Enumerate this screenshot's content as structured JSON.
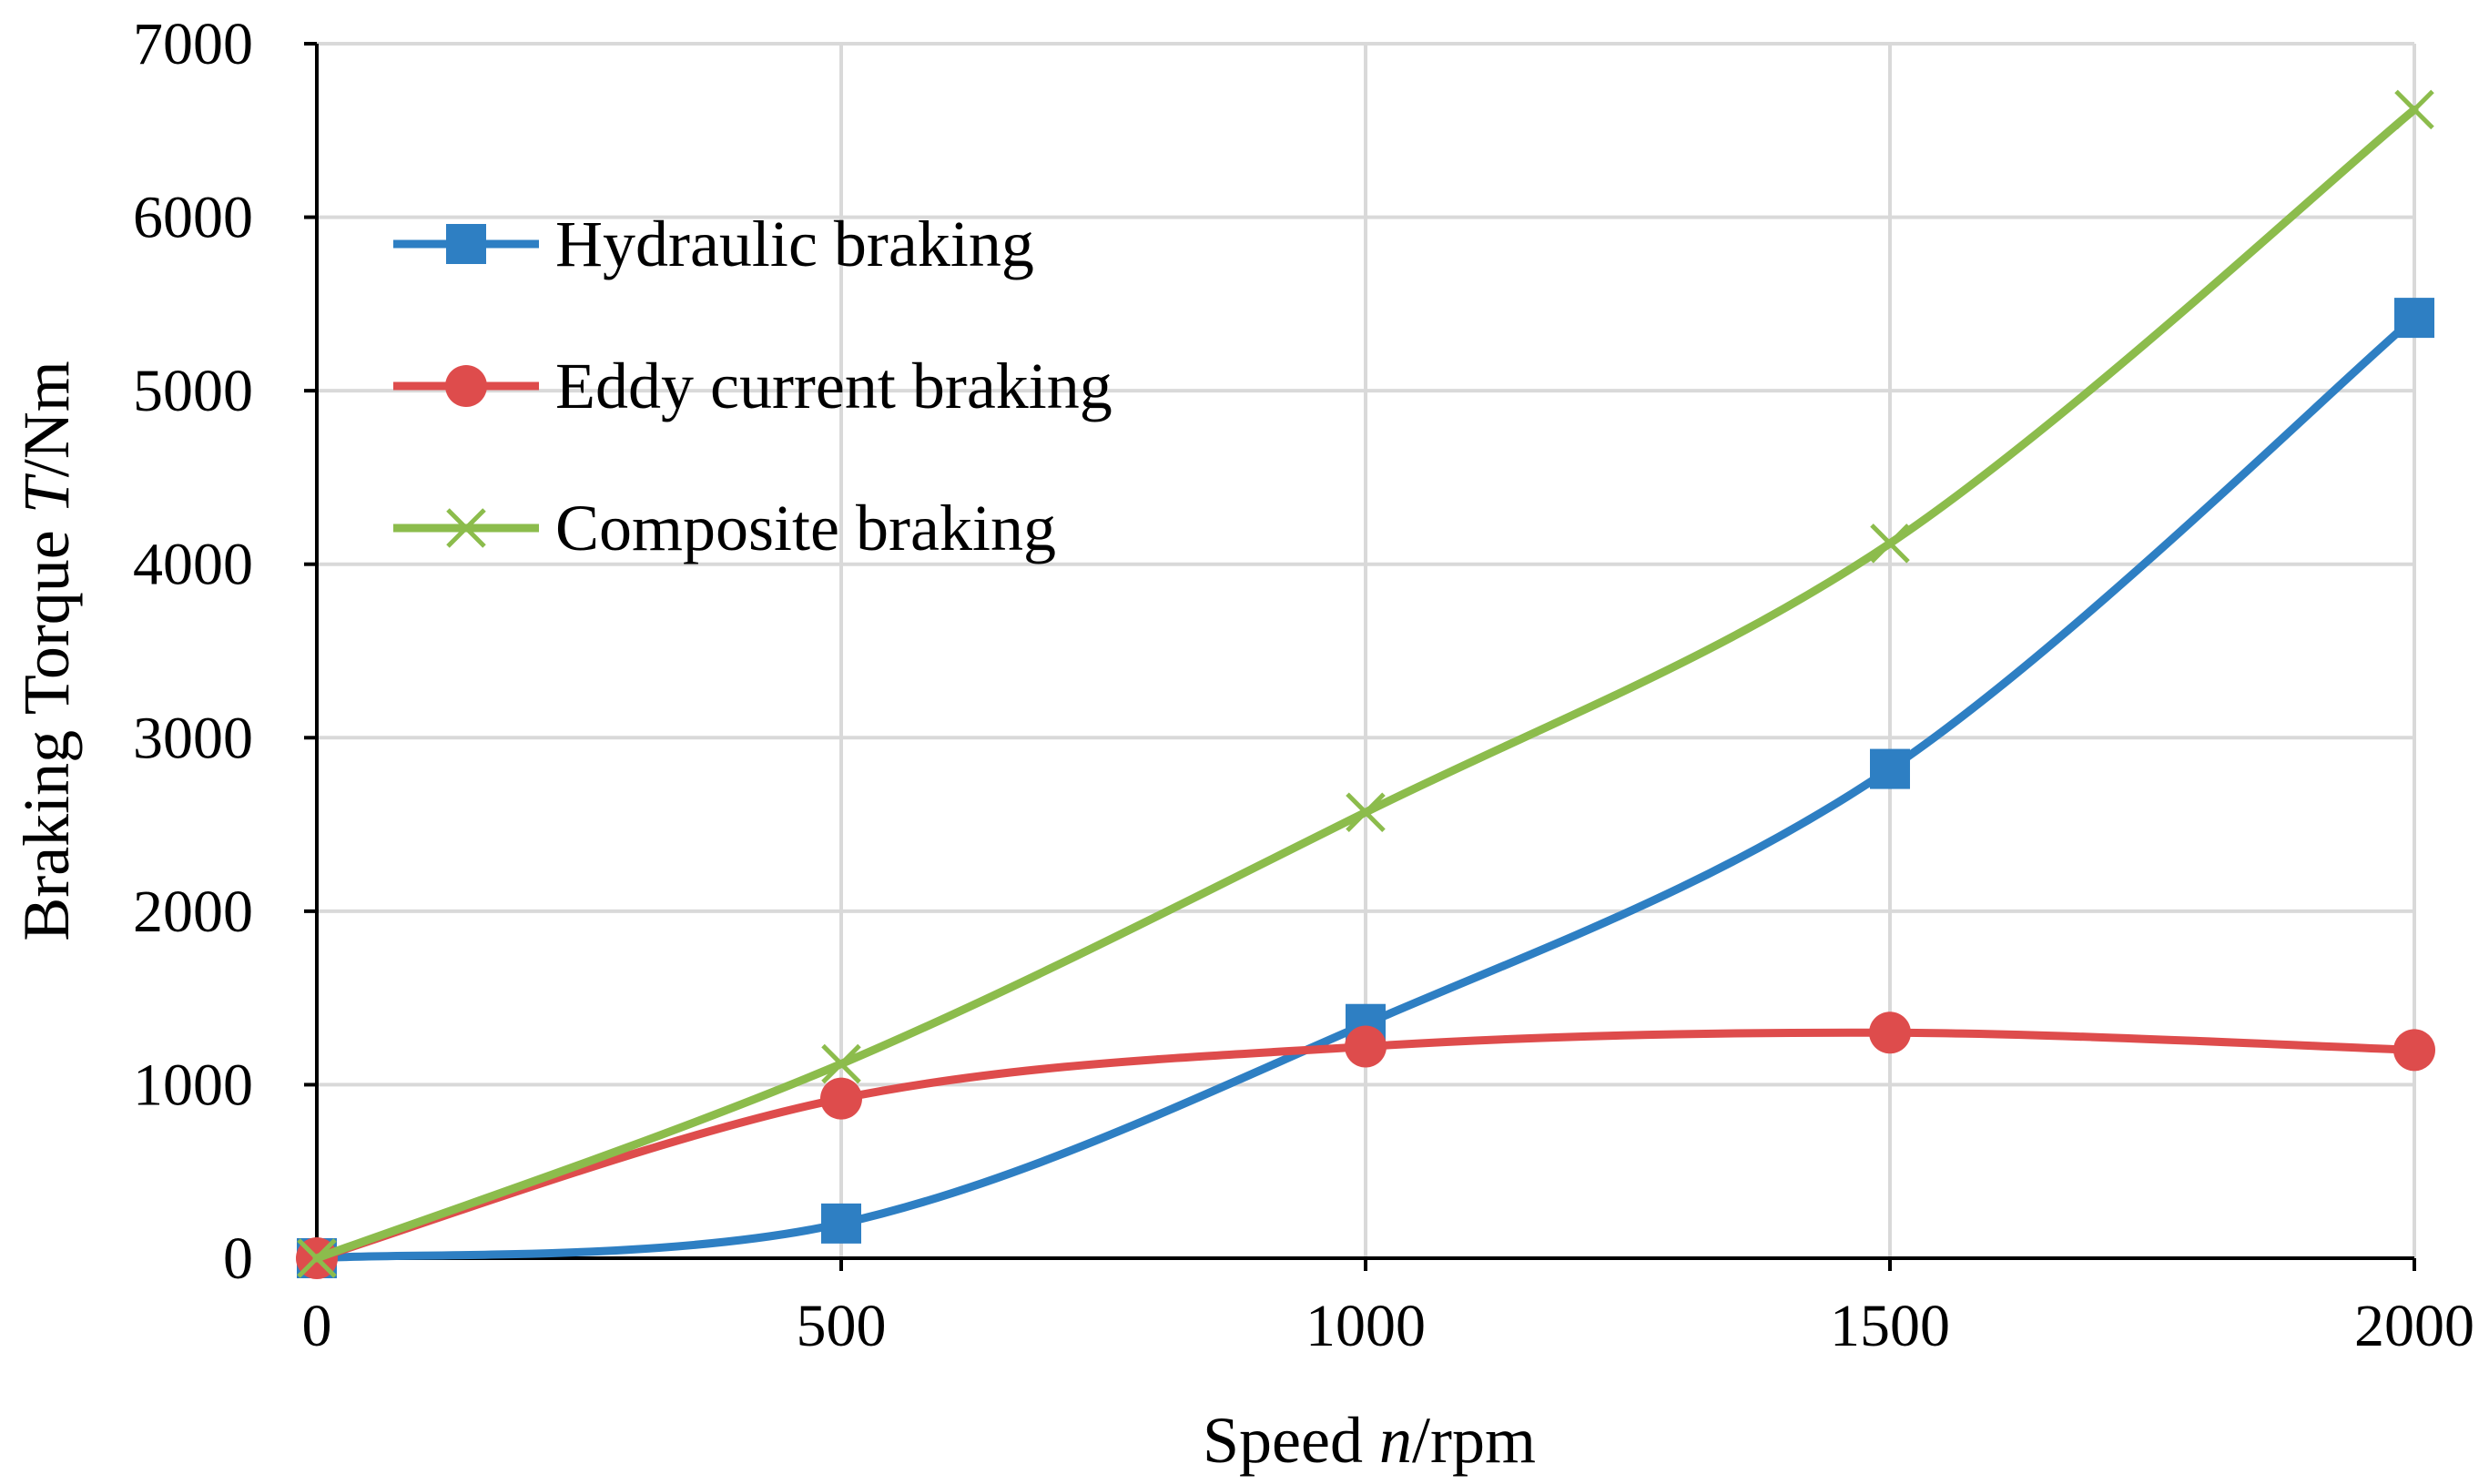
{
  "chart_data": {
    "type": "line",
    "smoothed": true,
    "x": [
      0,
      500,
      1000,
      1500,
      2000
    ],
    "xlim": [
      0,
      2000
    ],
    "ylim": [
      0,
      7000
    ],
    "x_ticks": [
      0,
      500,
      1000,
      1500,
      2000
    ],
    "y_ticks": [
      0,
      1000,
      2000,
      3000,
      4000,
      5000,
      6000,
      7000
    ],
    "x_tick_labels": [
      "0",
      "500",
      "1000",
      "1500",
      "2000"
    ],
    "y_tick_labels": [
      "0",
      "1000",
      "2000",
      "3000",
      "4000",
      "5000",
      "6000",
      "7000"
    ],
    "xlabel": {
      "prefix": "Speed ",
      "var": "n",
      "suffix": "/rpm"
    },
    "ylabel": {
      "prefix": "Braking Torque ",
      "var": "T",
      "suffix": "/Nm"
    },
    "grid": true,
    "legend_position": "top-left",
    "series": [
      {
        "name": "Hydraulic braking",
        "color": "#2e7fc3",
        "marker": "square",
        "values": [
          0,
          200,
          1350,
          2820,
          5420
        ]
      },
      {
        "name": "Eddy current braking",
        "color": "#de4c4c",
        "marker": "circle",
        "values": [
          0,
          920,
          1220,
          1300,
          1200
        ]
      },
      {
        "name": "Composite braking",
        "color": "#8cbc4c",
        "marker": "x",
        "values": [
          0,
          1120,
          2570,
          4120,
          6620
        ]
      }
    ]
  }
}
